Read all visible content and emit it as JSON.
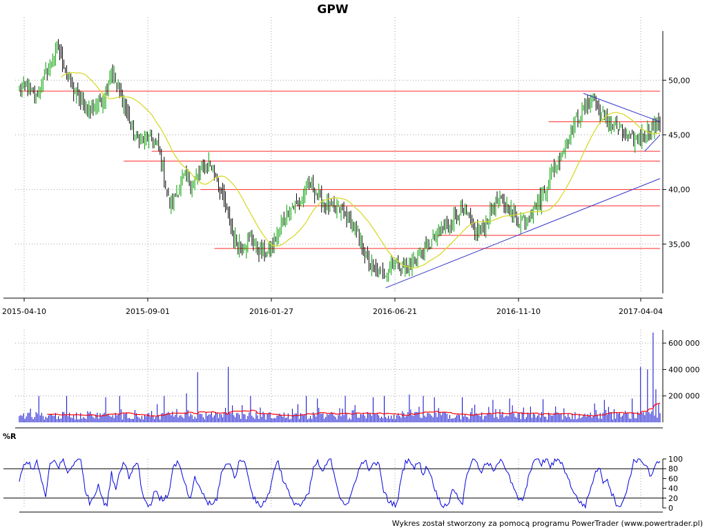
{
  "page": {
    "title": "GPW",
    "credit": "Wykres został stworzony za pomocą programu PowerTrader (www.powertrader.pl)",
    "indicator_label": "%R"
  },
  "colors": {
    "candle_up": "#00a000",
    "candle_down": "#000000",
    "ma": "#d9d92a",
    "support": "#ff4040",
    "trend": "#3333cc",
    "volume": "#0000cc",
    "volume_ma": "#ff0000",
    "willr": "#0000dd",
    "grid": "#a0a0a0"
  },
  "chart_data": [
    {
      "type": "candlestick",
      "name": "price",
      "x_tick_labels": [
        "2015-04-10",
        "2015-09-01",
        "2016-01-27",
        "2016-06-21",
        "2016-11-10",
        "2017-04-04"
      ],
      "y_tick_labels": [
        "35,00",
        "40,00",
        "45,00",
        "50,00"
      ],
      "ylim": [
        30.5,
        54.5
      ],
      "close_path": [
        [
          0,
          49.0
        ],
        [
          6,
          49.5
        ],
        [
          12,
          48.5
        ],
        [
          18,
          50.3
        ],
        [
          24,
          52.0
        ],
        [
          28,
          53.0
        ],
        [
          32,
          51.5
        ],
        [
          38,
          49.2
        ],
        [
          44,
          48.0
        ],
        [
          50,
          47.2
        ],
        [
          56,
          47.8
        ],
        [
          62,
          48.8
        ],
        [
          66,
          51.0
        ],
        [
          70,
          49.5
        ],
        [
          76,
          47.5
        ],
        [
          82,
          45.0
        ],
        [
          88,
          44.5
        ],
        [
          94,
          44.8
        ],
        [
          100,
          44.0
        ],
        [
          104,
          41.0
        ],
        [
          108,
          38.5
        ],
        [
          112,
          39.5
        ],
        [
          118,
          41.0
        ],
        [
          124,
          40.5
        ],
        [
          130,
          41.5
        ],
        [
          136,
          42.5
        ],
        [
          142,
          41.0
        ],
        [
          148,
          38.5
        ],
        [
          154,
          35.5
        ],
        [
          160,
          34.8
        ],
        [
          166,
          35.5
        ],
        [
          172,
          34.5
        ],
        [
          178,
          34.0
        ],
        [
          184,
          35.5
        ],
        [
          190,
          37.5
        ],
        [
          196,
          38.5
        ],
        [
          202,
          39.0
        ],
        [
          208,
          40.5
        ],
        [
          214,
          39.5
        ],
        [
          220,
          38.5
        ],
        [
          226,
          38.3
        ],
        [
          232,
          38.0
        ],
        [
          238,
          37.0
        ],
        [
          244,
          35.5
        ],
        [
          250,
          33.5
        ],
        [
          256,
          32.5
        ],
        [
          262,
          32.2
        ],
        [
          268,
          33.5
        ],
        [
          274,
          33.0
        ],
        [
          280,
          32.8
        ],
        [
          286,
          34.0
        ],
        [
          292,
          34.5
        ],
        [
          298,
          35.5
        ],
        [
          304,
          36.5
        ],
        [
          310,
          37.0
        ],
        [
          316,
          38.0
        ],
        [
          322,
          37.5
        ],
        [
          328,
          36.0
        ],
        [
          334,
          36.5
        ],
        [
          340,
          38.5
        ],
        [
          346,
          39.0
        ],
        [
          352,
          38.2
        ],
        [
          358,
          37.0
        ],
        [
          364,
          37.5
        ],
        [
          370,
          38.5
        ],
        [
          376,
          39.5
        ],
        [
          382,
          41.5
        ],
        [
          388,
          43.0
        ],
        [
          394,
          44.5
        ],
        [
          400,
          46.5
        ],
        [
          406,
          47.5
        ],
        [
          412,
          48.5
        ],
        [
          418,
          47.0
        ],
        [
          424,
          46.0
        ],
        [
          430,
          45.5
        ],
        [
          436,
          44.8
        ],
        [
          442,
          44.5
        ],
        [
          448,
          45.0
        ],
        [
          454,
          45.5
        ],
        [
          460,
          46.2
        ]
      ],
      "moving_average": {
        "period": 30,
        "note": ""
      },
      "horizontal_levels": [
        {
          "value": 49.0,
          "from": 0,
          "to": 460
        },
        {
          "value": 46.2,
          "from": 380,
          "to": 460
        },
        {
          "value": 43.5,
          "from": 95,
          "to": 460
        },
        {
          "value": 42.6,
          "from": 75,
          "to": 460
        },
        {
          "value": 40.0,
          "from": 130,
          "to": 460
        },
        {
          "value": 38.5,
          "from": 198,
          "to": 460
        },
        {
          "value": 35.8,
          "from": 300,
          "to": 460
        },
        {
          "value": 34.6,
          "from": 140,
          "to": 460
        }
      ],
      "trend_lines": [
        {
          "from": [
            263,
            31.0
          ],
          "to": [
            460,
            41.0
          ]
        },
        {
          "from": [
            449,
            43.5
          ],
          "to": [
            460,
            45.0
          ]
        },
        {
          "from": [
            405,
            48.8
          ],
          "to": [
            460,
            46.2
          ]
        }
      ]
    },
    {
      "type": "bar",
      "name": "volume",
      "y_tick_labels": [
        "200 000",
        "400 000",
        "600 000"
      ],
      "ylim": [
        0,
        700000
      ],
      "spikes": [
        [
          14,
          200000
        ],
        [
          34,
          200000
        ],
        [
          62,
          190000
        ],
        [
          72,
          200000
        ],
        [
          104,
          200000
        ],
        [
          120,
          220000
        ],
        [
          128,
          380000
        ],
        [
          150,
          420000
        ],
        [
          166,
          200000
        ],
        [
          206,
          200000
        ],
        [
          214,
          180000
        ],
        [
          234,
          200000
        ],
        [
          254,
          190000
        ],
        [
          262,
          200000
        ],
        [
          280,
          210000
        ],
        [
          290,
          200000
        ],
        [
          298,
          190000
        ],
        [
          318,
          190000
        ],
        [
          340,
          170000
        ],
        [
          352,
          180000
        ],
        [
          376,
          175000
        ],
        [
          420,
          170000
        ],
        [
          440,
          180000
        ],
        [
          446,
          420000
        ],
        [
          451,
          400000
        ],
        [
          455,
          680000
        ],
        [
          457,
          250000
        ]
      ],
      "moving_average": "red"
    },
    {
      "type": "line",
      "name": "williams_r",
      "y_tick_labels": [
        "0",
        "20",
        "40",
        "60",
        "80",
        "100"
      ],
      "ylim": [
        0,
        100
      ],
      "reference_levels": [
        20,
        80
      ],
      "values": [
        55,
        85,
        95,
        80,
        92,
        60,
        20,
        90,
        95,
        85,
        100,
        70,
        85,
        100,
        95,
        40,
        10,
        25,
        50,
        15,
        5,
        70,
        40,
        80,
        95,
        60,
        85,
        95,
        30,
        10,
        5,
        40,
        20,
        15,
        30,
        80,
        95,
        70,
        40,
        15,
        60,
        45,
        25,
        10,
        5,
        20,
        70,
        85,
        95,
        60,
        90,
        100,
        75,
        30,
        10,
        5,
        15,
        30,
        80,
        95,
        60,
        40,
        15,
        10,
        5,
        15,
        30,
        80,
        95,
        70,
        90,
        100,
        60,
        25,
        10,
        5,
        40,
        70,
        90,
        95,
        75,
        95,
        85,
        35,
        15,
        10,
        5,
        60,
        95,
        100,
        80,
        95,
        70,
        85,
        60,
        30,
        10,
        5,
        15,
        40,
        20,
        10,
        70,
        95,
        100,
        70,
        85,
        90,
        75,
        95,
        100,
        75,
        55,
        30,
        15,
        20,
        60,
        95,
        100,
        90,
        100,
        85,
        95,
        100,
        85,
        60,
        40,
        20,
        10,
        5,
        35,
        65,
        85,
        55,
        60,
        30,
        10,
        5,
        20,
        60,
        95,
        100,
        95,
        85,
        60,
        90,
        95
      ]
    }
  ]
}
